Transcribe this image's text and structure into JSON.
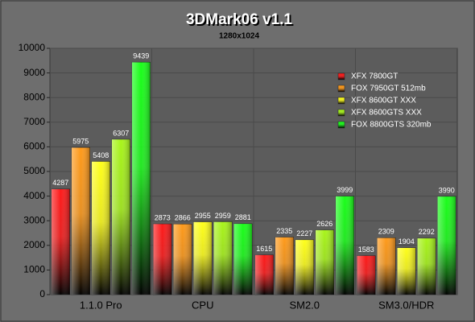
{
  "chart_data": {
    "type": "bar",
    "title": "3DMark06 v1.1",
    "subtitle": "1280x1024",
    "categories": [
      "1.1.0 Pro",
      "CPU",
      "SM2.0",
      "SM3.0/HDR"
    ],
    "series": [
      {
        "name": "XFX 7800GT",
        "color": "#ff1a1a",
        "values": [
          4287,
          2873,
          1615,
          1583
        ]
      },
      {
        "name": "FOX 7950GT 512mb",
        "color": "#ff9a1a",
        "values": [
          5975,
          2866,
          2335,
          2309
        ]
      },
      {
        "name": "XFX 8600GT XXX",
        "color": "#ffff1a",
        "values": [
          5408,
          2955,
          2227,
          1904
        ]
      },
      {
        "name": "XFX 8600GTS XXX",
        "color": "#a8f51a",
        "values": [
          6307,
          2959,
          2626,
          2292
        ]
      },
      {
        "name": "FOX 8800GTS 320mb",
        "color": "#1aff1a",
        "values": [
          9439,
          2881,
          3999,
          3990
        ]
      }
    ],
    "ylim": [
      0,
      10000
    ],
    "yticks": [
      0,
      1000,
      2000,
      3000,
      4000,
      5000,
      6000,
      7000,
      8000,
      9000,
      10000
    ],
    "grid": true,
    "legend": "upper right"
  }
}
